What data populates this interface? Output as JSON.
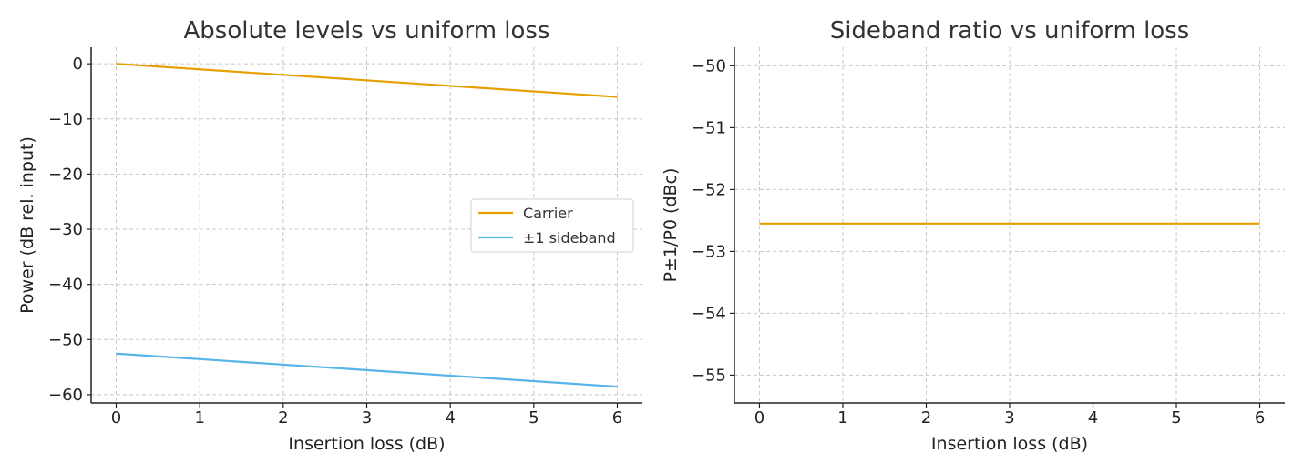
{
  "chart_data": [
    {
      "type": "line",
      "title": "Absolute levels vs uniform loss",
      "xlabel": "Insertion loss (dB)",
      "ylabel": "Power (dB rel. input)",
      "xlim": [
        -0.3,
        6.3
      ],
      "ylim": [
        -61.5,
        3
      ],
      "xticks": [
        0,
        1,
        2,
        3,
        4,
        5,
        6
      ],
      "yticks": [
        0,
        -10,
        -20,
        -30,
        -40,
        -50,
        -60
      ],
      "grid": true,
      "legend_position": "center-right",
      "series": [
        {
          "name": "Carrier",
          "color": "#E69F00",
          "x": [
            0,
            6
          ],
          "y": [
            0,
            -6
          ]
        },
        {
          "name": "±1 sideband",
          "color": "#56B4E9",
          "x": [
            0,
            6
          ],
          "y": [
            -52.55,
            -58.55
          ]
        }
      ]
    },
    {
      "type": "line",
      "title": "Sideband ratio vs uniform loss",
      "xlabel": "Insertion loss (dB)",
      "ylabel": "P±1/P0 (dBc)",
      "xlim": [
        -0.3,
        6.3
      ],
      "ylim": [
        -55.45,
        -49.7
      ],
      "xticks": [
        0,
        1,
        2,
        3,
        4,
        5,
        6
      ],
      "yticks": [
        -50,
        -51,
        -52,
        -53,
        -54,
        -55
      ],
      "grid": true,
      "series": [
        {
          "color": "#E69F00",
          "x": [
            0,
            6
          ],
          "y": [
            -52.55,
            -52.55
          ]
        }
      ]
    }
  ]
}
